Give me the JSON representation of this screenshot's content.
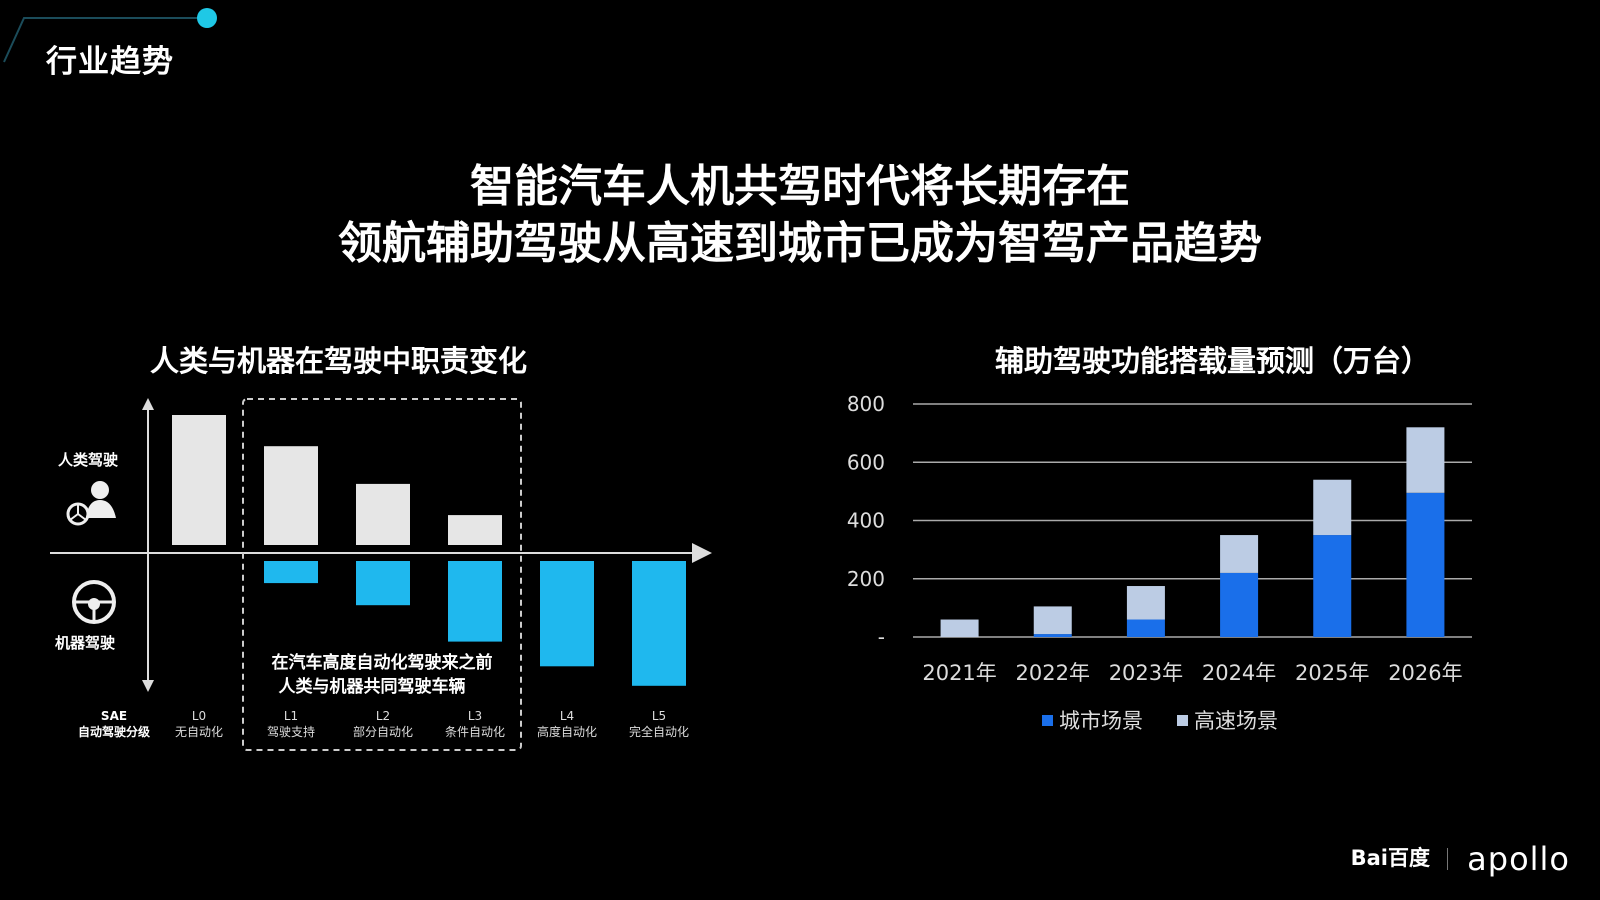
{
  "page": {
    "section_title": "行业趋势",
    "headline_lines": [
      "智能汽车人机共驾时代将长期存在",
      "领航辅助驾驶从高速到城市已成为智驾产品趋势"
    ],
    "accent_color": "#1fc8e6",
    "brand": {
      "baidu": "Bai百度",
      "apollo": "apollo"
    }
  },
  "chart_data": [
    {
      "type": "bar",
      "title": "人类与机器在驾驶中职责变化",
      "ylabel_top": "人类驾驶",
      "ylabel_bottom": "机器驾驶",
      "x_axis_name": [
        "SAE",
        "自动驾驶分级"
      ],
      "categories": [
        {
          "code": "L0",
          "name": "无自动化"
        },
        {
          "code": "L1",
          "name": "驾驶支持"
        },
        {
          "code": "L2",
          "name": "部分自动化"
        },
        {
          "code": "L3",
          "name": "条件自动化"
        },
        {
          "code": "L4",
          "name": "高度自动化"
        },
        {
          "code": "L5",
          "name": "完全自动化"
        }
      ],
      "series": [
        {
          "values": [
            1.0,
            0.76,
            0.47,
            0.23,
            0,
            0
          ],
          "color": "#e6e6e6"
        },
        {
          "values": [
            0,
            0.17,
            0.34,
            0.62,
            0.81,
            0.96
          ],
          "color": "#1fb8ee"
        }
      ],
      "highlight_box": {
        "covers": [
          "L1",
          "L2",
          "L3"
        ],
        "annotation": [
          "在汽车高度自动化驾驶来之前",
          "人类与机器共同驾驶车辆"
        ]
      }
    },
    {
      "type": "bar",
      "stacked": true,
      "title": "辅助驾驶功能搭载量预测（万台）",
      "categories": [
        "2021年",
        "2022年",
        "2023年",
        "2024年",
        "2025年",
        "2026年"
      ],
      "ylim": [
        0,
        800
      ],
      "yticks": [
        "-",
        "200",
        "400",
        "600",
        "800"
      ],
      "grid": true,
      "legend_position": "bottom",
      "series": [
        {
          "name": "城市场景",
          "values": [
            0,
            10,
            60,
            220,
            350,
            495
          ],
          "color": "#1a6fea"
        },
        {
          "name": "高速场景",
          "values": [
            60,
            95,
            115,
            130,
            190,
            225
          ],
          "color": "#bccce4"
        }
      ]
    }
  ]
}
